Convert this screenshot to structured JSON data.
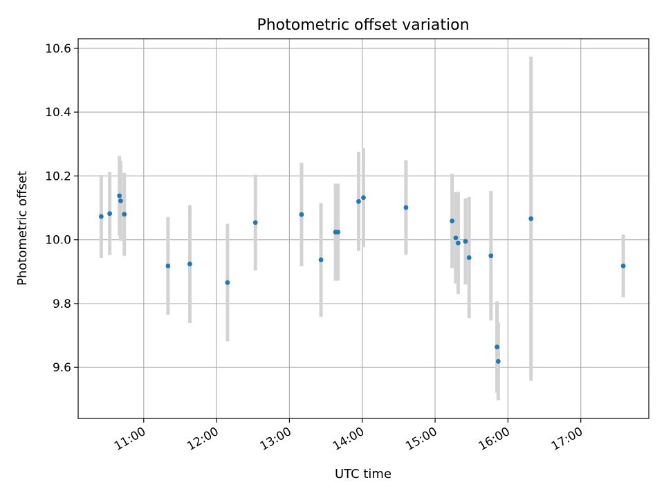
{
  "chart_data": {
    "type": "scatter",
    "title": "Photometric offset variation",
    "xlabel": "UTC time",
    "ylabel": "Photometric offset",
    "x_ticks": [
      "11:00",
      "12:00",
      "13:00",
      "14:00",
      "15:00",
      "16:00",
      "17:00"
    ],
    "y_ticks": [
      "9.6",
      "9.8",
      "10.0",
      "10.2",
      "10.4",
      "10.6"
    ],
    "x_range": [
      "10:06",
      "17:56"
    ],
    "ylim": [
      9.44,
      10.63
    ],
    "grid": true,
    "legend": "none",
    "marker_color": "#1f77b4",
    "errorbar_color": "#d3d3d3",
    "series": [
      {
        "points": [
          {
            "x": "10:25",
            "y": 10.073,
            "err": 0.13
          },
          {
            "x": "10:32",
            "y": 10.082,
            "err": 0.13
          },
          {
            "x": "10:40",
            "y": 10.138,
            "err": 0.125
          },
          {
            "x": "10:41",
            "y": 10.122,
            "err": 0.125
          },
          {
            "x": "10:44",
            "y": 10.08,
            "err": 0.13
          },
          {
            "x": "11:20",
            "y": 9.918,
            "err": 0.153
          },
          {
            "x": "11:38",
            "y": 9.924,
            "err": 0.185
          },
          {
            "x": "12:09",
            "y": 9.866,
            "err": 0.184
          },
          {
            "x": "12:32",
            "y": 10.054,
            "err": 0.15
          },
          {
            "x": "13:10",
            "y": 10.079,
            "err": 0.162
          },
          {
            "x": "13:26",
            "y": 9.937,
            "err": 0.178
          },
          {
            "x": "13:38",
            "y": 10.024,
            "err": 0.152
          },
          {
            "x": "13:40",
            "y": 10.024,
            "err": 0.152
          },
          {
            "x": "13:57",
            "y": 10.12,
            "err": 0.155
          },
          {
            "x": "14:01",
            "y": 10.132,
            "err": 0.155
          },
          {
            "x": "14:36",
            "y": 10.101,
            "err": 0.148
          },
          {
            "x": "15:14",
            "y": 10.059,
            "err": 0.148
          },
          {
            "x": "15:17",
            "y": 10.006,
            "err": 0.143
          },
          {
            "x": "15:19",
            "y": 9.99,
            "err": 0.16
          },
          {
            "x": "15:25",
            "y": 9.995,
            "err": 0.135
          },
          {
            "x": "15:28",
            "y": 9.944,
            "err": 0.19
          },
          {
            "x": "15:46",
            "y": 9.95,
            "err": 0.203
          },
          {
            "x": "15:51",
            "y": 9.664,
            "err": 0.143
          },
          {
            "x": "15:52",
            "y": 9.619,
            "err": 0.122
          },
          {
            "x": "16:19",
            "y": 10.066,
            "err": 0.508
          },
          {
            "x": "17:35",
            "y": 9.918,
            "err": 0.098
          }
        ]
      }
    ]
  }
}
